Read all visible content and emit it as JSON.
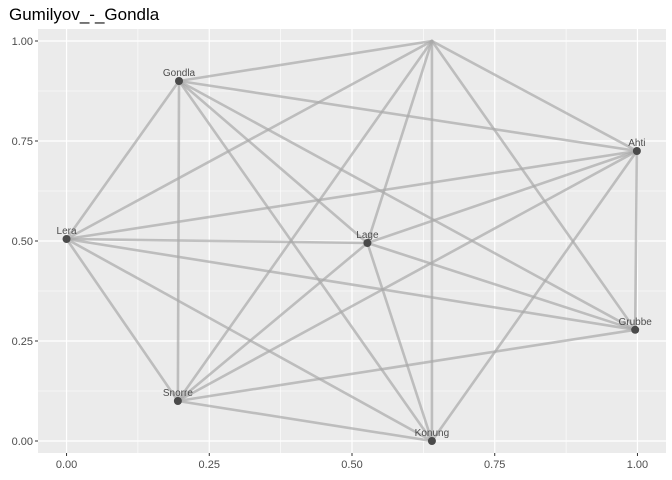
{
  "chart_data": {
    "type": "network",
    "title": "Gumilyov_-_Gondla",
    "xlim": [
      -0.05,
      1.05
    ],
    "ylim": [
      -0.03,
      1.03
    ],
    "x_ticks": [
      {
        "value": 0,
        "label": "0.00"
      },
      {
        "value": 0.25,
        "label": "0.25"
      },
      {
        "value": 0.5,
        "label": "0.50"
      },
      {
        "value": 0.75,
        "label": "0.75"
      },
      {
        "value": 1,
        "label": "1.00"
      }
    ],
    "y_ticks": [
      {
        "value": 0,
        "label": "0.00"
      },
      {
        "value": 0.25,
        "label": "0.25"
      },
      {
        "value": 0.5,
        "label": "0.50"
      },
      {
        "value": 0.75,
        "label": "0.75"
      },
      {
        "value": 1,
        "label": "1.00"
      }
    ],
    "nodes": [
      {
        "id": "Top",
        "label": "",
        "x": 0.64,
        "y": 1.0
      },
      {
        "id": "Gondla",
        "label": "Gondla",
        "x": 0.197,
        "y": 0.9
      },
      {
        "id": "Ahti",
        "label": "Ahti",
        "x": 0.999,
        "y": 0.725
      },
      {
        "id": "Lera",
        "label": "Lera",
        "x": 0.0,
        "y": 0.505
      },
      {
        "id": "Lage",
        "label": "Lage",
        "x": 0.527,
        "y": 0.495
      },
      {
        "id": "Grubbe",
        "label": "Grubbe",
        "x": 0.996,
        "y": 0.278
      },
      {
        "id": "Snorre",
        "label": "Snorre",
        "x": 0.195,
        "y": 0.1
      },
      {
        "id": "Konung",
        "label": "Konung",
        "x": 0.64,
        "y": 0.0
      }
    ],
    "edges": [
      [
        "Top",
        "Gondla"
      ],
      [
        "Top",
        "Ahti"
      ],
      [
        "Top",
        "Lera"
      ],
      [
        "Top",
        "Lage"
      ],
      [
        "Top",
        "Grubbe"
      ],
      [
        "Top",
        "Snorre"
      ],
      [
        "Top",
        "Konung"
      ],
      [
        "Gondla",
        "Ahti"
      ],
      [
        "Gondla",
        "Lera"
      ],
      [
        "Gondla",
        "Lage"
      ],
      [
        "Gondla",
        "Grubbe"
      ],
      [
        "Gondla",
        "Snorre"
      ],
      [
        "Gondla",
        "Konung"
      ],
      [
        "Ahti",
        "Lera"
      ],
      [
        "Ahti",
        "Lage"
      ],
      [
        "Ahti",
        "Grubbe"
      ],
      [
        "Ahti",
        "Snorre"
      ],
      [
        "Ahti",
        "Konung"
      ],
      [
        "Lera",
        "Lage"
      ],
      [
        "Lera",
        "Grubbe"
      ],
      [
        "Lera",
        "Snorre"
      ],
      [
        "Lera",
        "Konung"
      ],
      [
        "Lage",
        "Grubbe"
      ],
      [
        "Lage",
        "Snorre"
      ],
      [
        "Lage",
        "Konung"
      ],
      [
        "Grubbe",
        "Snorre"
      ],
      [
        "Snorre",
        "Konung"
      ]
    ],
    "panel_background": "#ebebeb",
    "grid_color": "#ffffff",
    "grid": true,
    "legend": "none"
  }
}
